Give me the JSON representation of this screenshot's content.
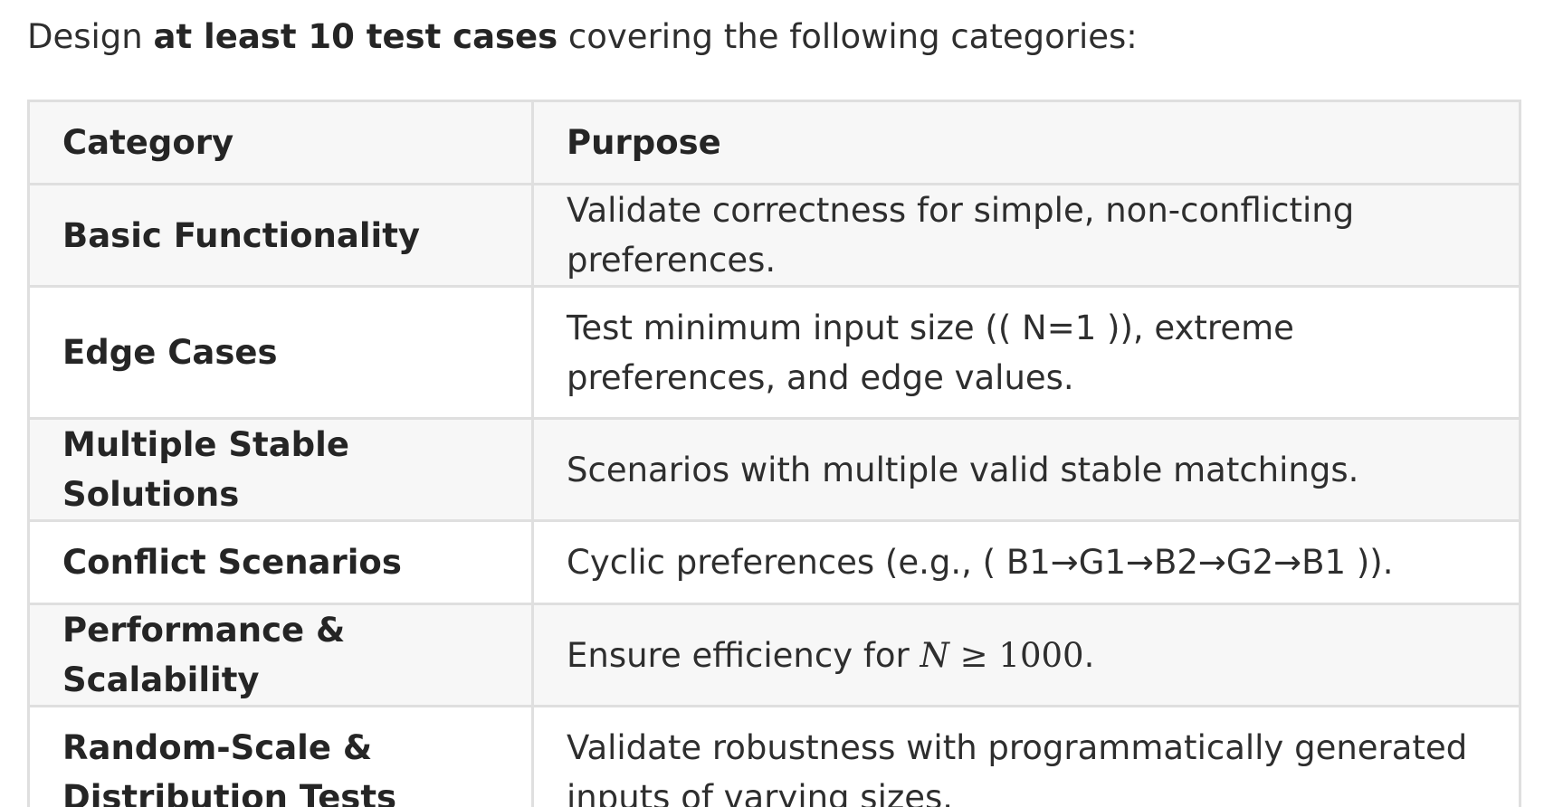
{
  "intro": {
    "prefix": "Design ",
    "emphasis": "at least 10 test cases",
    "suffix": " covering the following categories:"
  },
  "table": {
    "headers": {
      "category": "Category",
      "purpose": "Purpose"
    },
    "rows": [
      {
        "category": "Basic Functionality",
        "purpose": "Validate correctness for simple, non-conflicting preferences."
      },
      {
        "category": "Edge Cases",
        "purpose": "Test minimum input size (( N=1 )), extreme preferences, and edge values."
      },
      {
        "category": "Multiple Stable Solutions",
        "purpose": "Scenarios with multiple valid stable matchings."
      },
      {
        "category": "Conflict Scenarios",
        "purpose": "Cyclic preferences (e.g., ( B1→G1→B2→G2→B1 ))."
      },
      {
        "category": "Performance & Scalability",
        "purpose_prefix": "Ensure efficiency for ",
        "purpose_math_var": "N",
        "purpose_math_rest": " ≥ 1000",
        "purpose_suffix": "."
      },
      {
        "category": "Random-Scale & Distribution Tests",
        "purpose": "Validate robustness with programmatically generated inputs of varying sizes."
      }
    ]
  }
}
